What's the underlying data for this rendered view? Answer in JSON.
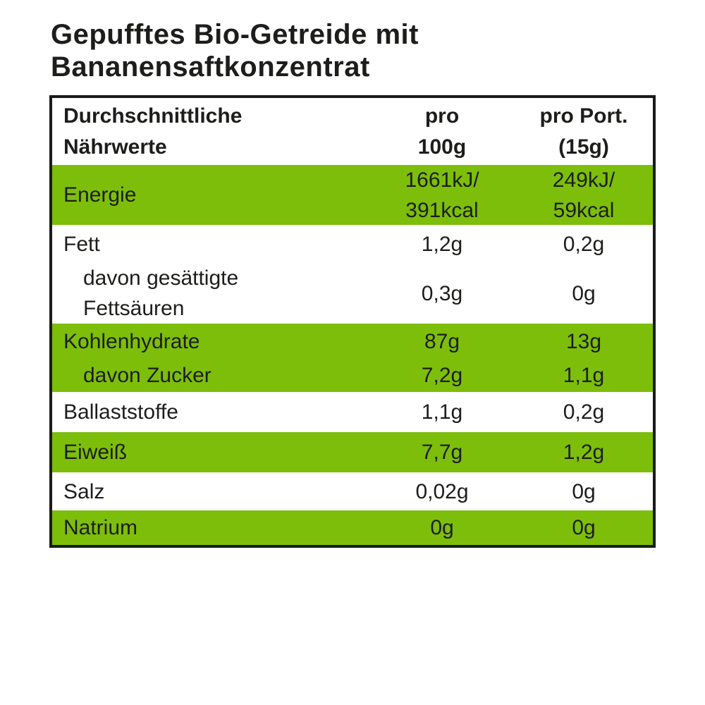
{
  "colors": {
    "green": "#7dbe0a",
    "text": "#1d1d1b",
    "border": "#1a1a1a",
    "background": "#ffffff"
  },
  "header": {
    "title_line1": "Gepufftes Bio-Getreide mit",
    "title_line2": "Bananensaftkonzentrat"
  },
  "table": {
    "header": {
      "col1_line1": "Durchschnittliche",
      "col1_line2": "Nährwerte",
      "col2_line1": "pro",
      "col2_line2": "100g",
      "col3_line1": "pro Port.",
      "col3_line2": "(15g)"
    },
    "rows": [
      {
        "label": "Energie",
        "per100_line1": "1661kJ/",
        "per100_line2": "391kcal",
        "portion_line1": "249kJ/",
        "portion_line2": "59kcal"
      },
      {
        "label": "Fett",
        "per100": "1,2g",
        "portion": "0,2g"
      },
      {
        "label_line1": "davon gesättigte",
        "label_line2": "Fettsäuren",
        "per100": "0,3g",
        "portion": "0g"
      },
      {
        "label": "Kohlenhydrate",
        "per100": "87g",
        "portion": "13g"
      },
      {
        "label": "davon Zucker",
        "per100": "7,2g",
        "portion": "1,1g"
      },
      {
        "label": "Ballaststoffe",
        "per100": "1,1g",
        "portion": "0,2g"
      },
      {
        "label": "Eiweiß",
        "per100": "7,7g",
        "portion": "1,2g"
      },
      {
        "label": "Salz",
        "per100": "0,02g",
        "portion": "0g"
      },
      {
        "label": "Natrium",
        "per100": "0g",
        "portion": "0g"
      }
    ]
  }
}
